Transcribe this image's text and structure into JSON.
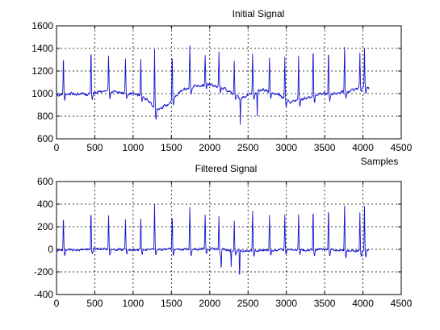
{
  "chart_data": [
    {
      "type": "line",
      "title": "Initial Signal",
      "xlabel": "Samples",
      "ylabel": "",
      "xlim": [
        0,
        4500
      ],
      "ylim": [
        600,
        1600
      ],
      "xticks": [
        0,
        500,
        1000,
        1500,
        2000,
        2500,
        3000,
        3500,
        4000,
        4500
      ],
      "yticks": [
        600,
        800,
        1000,
        1200,
        1400,
        1600
      ],
      "grid": true,
      "color": "#1414d2",
      "baseline_points": [
        [
          0,
          985
        ],
        [
          200,
          1000
        ],
        [
          400,
          995
        ],
        [
          600,
          1020
        ],
        [
          800,
          1010
        ],
        [
          1000,
          1000
        ],
        [
          1150,
          970
        ],
        [
          1300,
          860
        ],
        [
          1450,
          900
        ],
        [
          1600,
          1010
        ],
        [
          1800,
          1070
        ],
        [
          2000,
          1080
        ],
        [
          2200,
          1040
        ],
        [
          2400,
          960
        ],
        [
          2550,
          1000
        ],
        [
          2700,
          1030
        ],
        [
          2900,
          990
        ],
        [
          3050,
          925
        ],
        [
          3250,
          960
        ],
        [
          3450,
          1000
        ],
        [
          3600,
          1000
        ],
        [
          3800,
          1020
        ],
        [
          4000,
          1060
        ],
        [
          4080,
          1040
        ]
      ],
      "peaks": [
        [
          90,
          1330
        ],
        [
          450,
          1390
        ],
        [
          680,
          1330
        ],
        [
          900,
          1300
        ],
        [
          1100,
          1310
        ],
        [
          1280,
          1390
        ],
        [
          1510,
          1330
        ],
        [
          1740,
          1420
        ],
        [
          1940,
          1330
        ],
        [
          2120,
          1360
        ],
        [
          2320,
          1280
        ],
        [
          2560,
          1360
        ],
        [
          2780,
          1330
        ],
        [
          2980,
          1330
        ],
        [
          3160,
          1330
        ],
        [
          3350,
          1390
        ],
        [
          3550,
          1390
        ],
        [
          3760,
          1410
        ],
        [
          3960,
          1370
        ],
        [
          4020,
          1400
        ]
      ],
      "dips": [
        [
          2400,
          730
        ],
        [
          2620,
          800
        ]
      ]
    },
    {
      "type": "line",
      "title": "Filtered Signal",
      "xlabel": "",
      "ylabel": "",
      "xlim": [
        0,
        4500
      ],
      "ylim": [
        -400,
        600
      ],
      "xticks": [
        0,
        500,
        1000,
        1500,
        2000,
        2500,
        3000,
        3500,
        4000,
        4500
      ],
      "yticks": [
        -400,
        -200,
        0,
        200,
        400,
        600
      ],
      "grid": true,
      "color": "#1414d2",
      "baseline_points": [
        [
          0,
          -10
        ],
        [
          500,
          5
        ],
        [
          1000,
          -5
        ],
        [
          1500,
          0
        ],
        [
          2000,
          5
        ],
        [
          2500,
          -15
        ],
        [
          3000,
          -5
        ],
        [
          3500,
          0
        ],
        [
          4000,
          -15
        ],
        [
          4080,
          -5
        ]
      ],
      "peaks": [
        [
          90,
          300
        ],
        [
          450,
          350
        ],
        [
          680,
          300
        ],
        [
          900,
          260
        ],
        [
          1100,
          270
        ],
        [
          1280,
          400
        ],
        [
          1510,
          300
        ],
        [
          1740,
          380
        ],
        [
          1940,
          300
        ],
        [
          2120,
          300
        ],
        [
          2320,
          250
        ],
        [
          2560,
          330
        ],
        [
          2780,
          300
        ],
        [
          2980,
          310
        ],
        [
          3160,
          310
        ],
        [
          3350,
          360
        ],
        [
          3550,
          360
        ],
        [
          3760,
          380
        ],
        [
          3960,
          330
        ],
        [
          4020,
          370
        ]
      ],
      "dips": [
        [
          2390,
          -280
        ],
        [
          2150,
          -180
        ],
        [
          2280,
          -150
        ]
      ]
    }
  ]
}
